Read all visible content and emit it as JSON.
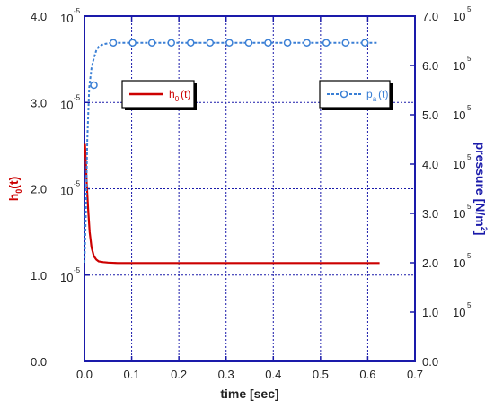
{
  "chart_data": {
    "type": "line",
    "xlabel": "time [sec]",
    "xlim": [
      0,
      0.7
    ],
    "x_ticks": [
      "0.0",
      "0.1",
      "0.2",
      "0.3",
      "0.4",
      "0.5",
      "0.6",
      "0.7"
    ],
    "left_axis": {
      "label": "h",
      "label_sub": "0",
      "label_suffix": "(t)",
      "color": "#cc0000",
      "ylim": [
        0,
        4e-05
      ],
      "ticks": [
        {
          "value": 0,
          "mant": "0.0",
          "exp": ""
        },
        {
          "value": 1e-05,
          "mant": "1.0",
          "exp": "-5"
        },
        {
          "value": 2e-05,
          "mant": "2.0",
          "exp": "-5"
        },
        {
          "value": 3e-05,
          "mant": "3.0",
          "exp": "-5"
        },
        {
          "value": 4e-05,
          "mant": "4.0",
          "exp": "-5"
        }
      ],
      "exp_base": "10"
    },
    "right_axis": {
      "label": "pressure [N/m",
      "label_sup": "2",
      "label_suffix": "]",
      "color": "#1a1aaa",
      "ylim": [
        0,
        700000.0
      ],
      "ticks": [
        {
          "value": 0,
          "mant": "0.0",
          "exp": ""
        },
        {
          "value": 100000.0,
          "mant": "1.0",
          "exp": "5"
        },
        {
          "value": 200000.0,
          "mant": "2.0",
          "exp": "5"
        },
        {
          "value": 300000.0,
          "mant": "3.0",
          "exp": "5"
        },
        {
          "value": 400000.0,
          "mant": "4.0",
          "exp": "5"
        },
        {
          "value": 500000.0,
          "mant": "5.0",
          "exp": "5"
        },
        {
          "value": 600000.0,
          "mant": "6.0",
          "exp": "5"
        },
        {
          "value": 700000.0,
          "mant": "7.0",
          "exp": "5"
        }
      ],
      "exp_base": "10"
    },
    "grid": true,
    "series": [
      {
        "name": "h",
        "name_sub": "0",
        "name_suffix": "(t)",
        "axis": "left",
        "color": "#cc0000",
        "style": "solid",
        "x": [
          0.001,
          0.003,
          0.005,
          0.008,
          0.011,
          0.015,
          0.02,
          0.025,
          0.03,
          0.04,
          0.05,
          0.07,
          0.1,
          0.2,
          0.3,
          0.4,
          0.5,
          0.6,
          0.625
        ],
        "y": [
          2.52e-05,
          2.3e-05,
          2.05e-05,
          1.75e-05,
          1.5e-05,
          1.32e-05,
          1.22e-05,
          1.18e-05,
          1.16e-05,
          1.15e-05,
          1.145e-05,
          1.14e-05,
          1.14e-05,
          1.14e-05,
          1.14e-05,
          1.14e-05,
          1.14e-05,
          1.14e-05,
          1.14e-05
        ]
      },
      {
        "name": "p",
        "name_sub": "a",
        "name_suffix": "(t)",
        "axis": "right",
        "color": "#3a7fd5",
        "style": "dotted-circles",
        "x": [
          0.0,
          0.003,
          0.006,
          0.01,
          0.015,
          0.02,
          0.025,
          0.03,
          0.04,
          0.05,
          0.06,
          0.08,
          0.1,
          0.2,
          0.3,
          0.4,
          0.5,
          0.6,
          0.62
        ],
        "y": [
          200000.0,
          300000.0,
          450000.0,
          555000.0,
          595000.0,
          615000.0,
          630000.0,
          638000.0,
          643000.0,
          645000.0,
          646000.0,
          646000.0,
          646000.0,
          646000.0,
          646000.0,
          646000.0,
          646000.0,
          646000.0,
          646000.0
        ],
        "markers_x": [
          0.02,
          0.061,
          0.102,
          0.143,
          0.184,
          0.225,
          0.266,
          0.307,
          0.348,
          0.389,
          0.43,
          0.471,
          0.512,
          0.553,
          0.594
        ],
        "markers_y": [
          560000.0,
          646000.0,
          646000.0,
          646000.0,
          646000.0,
          646000.0,
          646000.0,
          646000.0,
          646000.0,
          646000.0,
          646000.0,
          646000.0,
          646000.0,
          646000.0,
          646000.0
        ]
      }
    ]
  }
}
